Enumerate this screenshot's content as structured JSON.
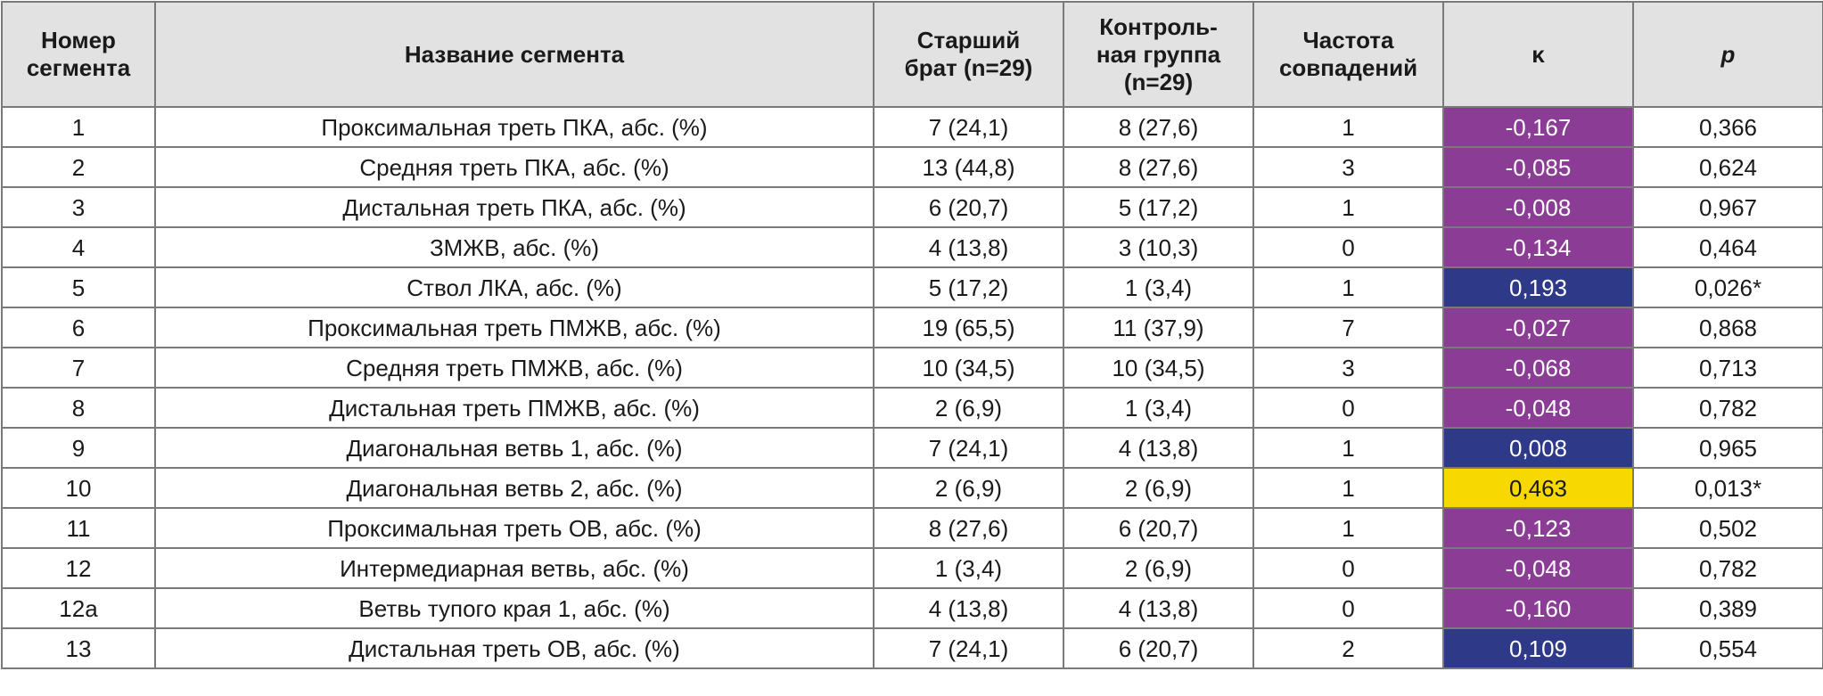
{
  "headers": {
    "num": [
      "Номер",
      "сегмента"
    ],
    "name": "Название сегмента",
    "brother": [
      "Старший",
      "брат (n=29)"
    ],
    "control": [
      "Контроль-",
      "ная группа",
      "(n=29)"
    ],
    "freq": [
      "Частота",
      "совпадений"
    ],
    "kappa": "κ",
    "p": "p"
  },
  "colors": {
    "purple": "#8b3d95",
    "blue": "#2e3a87",
    "yellow": "#f7d800",
    "header_bg": "#e2e2e2"
  },
  "rows": [
    {
      "num": "1",
      "name": "Проксимальная треть ПКА, абс. (%)",
      "brother": "7 (24,1)",
      "control": "8 (27,6)",
      "freq": "1",
      "kappa": "-0,167",
      "kappa_color": "purple",
      "p": "0,366"
    },
    {
      "num": "2",
      "name": "Средняя треть ПКА, абс. (%)",
      "brother": "13 (44,8)",
      "control": "8 (27,6)",
      "freq": "3",
      "kappa": "-0,085",
      "kappa_color": "purple",
      "p": "0,624"
    },
    {
      "num": "3",
      "name": "Дистальная треть ПКА, абс. (%)",
      "brother": "6 (20,7)",
      "control": "5 (17,2)",
      "freq": "1",
      "kappa": "-0,008",
      "kappa_color": "purple",
      "p": "0,967"
    },
    {
      "num": "4",
      "name": "ЗМЖВ, абс. (%)",
      "brother": "4 (13,8)",
      "control": "3 (10,3)",
      "freq": "0",
      "kappa": "-0,134",
      "kappa_color": "purple",
      "p": "0,464"
    },
    {
      "num": "5",
      "name": "Ствол ЛКА, абс. (%)",
      "brother": "5 (17,2)",
      "control": "1 (3,4)",
      "freq": "1",
      "kappa": "0,193",
      "kappa_color": "blue",
      "p": "0,026*"
    },
    {
      "num": "6",
      "name": "Проксимальная треть ПМЖВ, абс. (%)",
      "brother": "19 (65,5)",
      "control": "11 (37,9)",
      "freq": "7",
      "kappa": "-0,027",
      "kappa_color": "purple",
      "p": "0,868"
    },
    {
      "num": "7",
      "name": "Средняя треть ПМЖВ, абс. (%)",
      "brother": "10 (34,5)",
      "control": "10 (34,5)",
      "freq": "3",
      "kappa": "-0,068",
      "kappa_color": "purple",
      "p": "0,713"
    },
    {
      "num": "8",
      "name": "Дистальная треть ПМЖВ, абс. (%)",
      "brother": "2 (6,9)",
      "control": "1 (3,4)",
      "freq": "0",
      "kappa": "-0,048",
      "kappa_color": "purple",
      "p": "0,782"
    },
    {
      "num": "9",
      "name": "Диагональная ветвь 1, абс. (%)",
      "brother": "7 (24,1)",
      "control": "4 (13,8)",
      "freq": "1",
      "kappa": "0,008",
      "kappa_color": "blue",
      "p": "0,965"
    },
    {
      "num": "10",
      "name": "Диагональная ветвь 2, абс. (%)",
      "brother": "2 (6,9)",
      "control": "2 (6,9)",
      "freq": "1",
      "kappa": "0,463",
      "kappa_color": "yellow",
      "p": "0,013*"
    },
    {
      "num": "11",
      "name": "Проксимальная треть ОВ, абс. (%)",
      "brother": "8 (27,6)",
      "control": "6 (20,7)",
      "freq": "1",
      "kappa": "-0,123",
      "kappa_color": "purple",
      "p": "0,502"
    },
    {
      "num": "12",
      "name": "Интермедиарная ветвь, абс. (%)",
      "brother": "1 (3,4)",
      "control": "2 (6,9)",
      "freq": "0",
      "kappa": "-0,048",
      "kappa_color": "purple",
      "p": "0,782"
    },
    {
      "num": "12а",
      "name": "Ветвь тупого края 1, абс. (%)",
      "brother": "4 (13,8)",
      "control": "4 (13,8)",
      "freq": "0",
      "kappa": "-0,160",
      "kappa_color": "purple",
      "p": "0,389"
    },
    {
      "num": "13",
      "name": "Дистальная треть ОВ, абс. (%)",
      "brother": "7 (24,1)",
      "control": "6 (20,7)",
      "freq": "2",
      "kappa": "0,109",
      "kappa_color": "blue",
      "p": "0,554"
    }
  ]
}
